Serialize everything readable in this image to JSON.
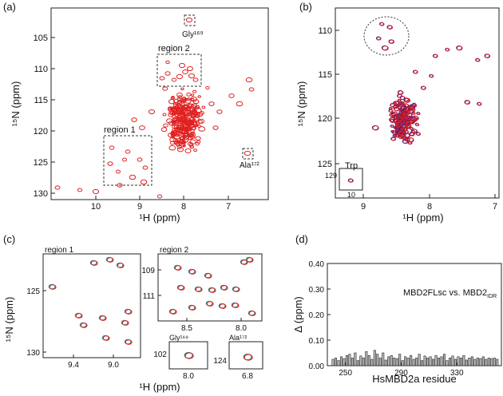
{
  "panels": {
    "a": {
      "tag": "(a)",
      "xlabel": "¹H (ppm)",
      "ylabel": "¹⁵N (ppm)",
      "xticks": [
        "10",
        "9",
        "8",
        "7"
      ],
      "yticks": [
        "105",
        "110",
        "115",
        "120",
        "125",
        "130"
      ],
      "region1": "region 1",
      "region2": "region 2",
      "gly": "Gly¹⁶⁹",
      "ala": "Ala¹⁷²"
    },
    "b": {
      "tag": "(b)",
      "xlabel": "¹H (ppm)",
      "ylabel": "¹⁵N (ppm)",
      "xticks": [
        "9",
        "8",
        "7"
      ],
      "yticks": [
        "110",
        "115",
        "120",
        "125"
      ],
      "trp": "Trp",
      "inset_y": "129",
      "inset_x": "10"
    },
    "c": {
      "tag": "(c)",
      "xlabel": "¹H (ppm)",
      "ylabel": "¹⁵N (ppm)",
      "region1": "region 1",
      "region2": "region 2",
      "r1_xticks": [
        "9.4",
        "9.0"
      ],
      "r1_yticks": [
        "125",
        "130"
      ],
      "r2_xticks": [
        "8.5",
        "8.0"
      ],
      "r2_yticks": [
        "109",
        "111"
      ],
      "gly": "Gly¹⁶⁹",
      "ala": "Ala¹⁷²",
      "gly_xtick": "8.0",
      "gly_ytick": "102",
      "ala_xtick": "6.8",
      "ala_ytick": "124"
    },
    "d": {
      "tag": "(d)",
      "legend": "MBD2FLsc vs. MBD2",
      "legend_sub": "IDR"
    }
  },
  "chart_data": {
    "type": "bar",
    "title": "",
    "xlabel": "HsMBD2a residue",
    "ylabel": "Δ (ppm)",
    "ylim": [
      0,
      0.4
    ],
    "yticks": [
      "0.00",
      "0.10",
      "0.20",
      "0.30",
      "0.40"
    ],
    "xticks": [
      "250",
      "290",
      "330"
    ],
    "xrange": [
      237,
      362
    ],
    "residues": [
      241,
      243,
      245,
      247,
      249,
      251,
      253,
      255,
      257,
      259,
      261,
      263,
      265,
      267,
      269,
      271,
      273,
      275,
      277,
      279,
      281,
      283,
      285,
      287,
      289,
      291,
      293,
      295,
      297,
      299,
      301,
      303,
      305,
      307,
      309,
      311,
      313,
      315,
      317,
      319,
      321,
      323,
      325,
      327,
      329,
      331,
      333,
      335,
      337,
      339,
      341,
      343,
      345,
      347,
      349,
      351,
      353,
      355,
      357,
      359
    ],
    "values": [
      0.025,
      0.03,
      0.02,
      0.035,
      0.028,
      0.04,
      0.045,
      0.03,
      0.05,
      0.02,
      0.038,
      0.03,
      0.055,
      0.04,
      0.025,
      0.06,
      0.045,
      0.03,
      0.05,
      0.022,
      0.035,
      0.04,
      0.03,
      0.028,
      0.045,
      0.02,
      0.035,
      0.03,
      0.04,
      0.025,
      0.03,
      0.045,
      0.02,
      0.038,
      0.03,
      0.035,
      0.025,
      0.04,
      0.03,
      0.035,
      0.045,
      0.02,
      0.03,
      0.038,
      0.025,
      0.035,
      0.03,
      0.04,
      0.022,
      0.03,
      0.035,
      0.025,
      0.03,
      0.028,
      0.035,
      0.025,
      0.03,
      0.028,
      0.03,
      0.025
    ]
  }
}
